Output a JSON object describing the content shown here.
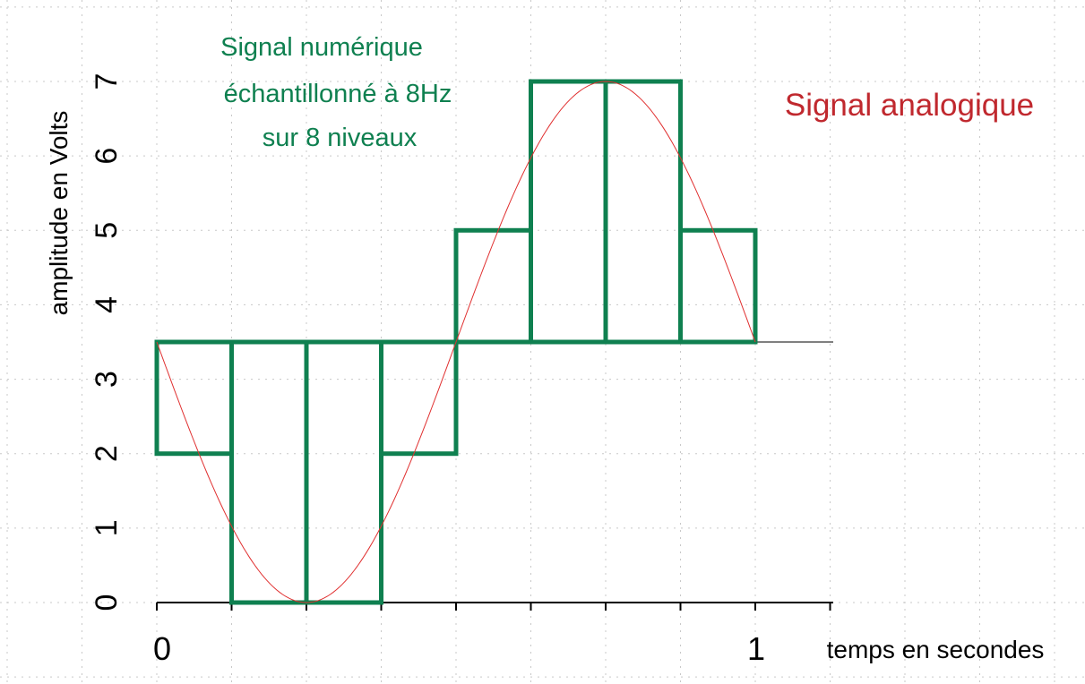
{
  "chart_data": {
    "type": "line",
    "title_lines": [
      "Signal numérique",
      "échantillonné à 8Hz",
      "sur 8 niveaux"
    ],
    "analog_label": "Signal analogique",
    "ylabel": "amplitude en Volts",
    "xlabel": "temps en secondes",
    "ylim": [
      0,
      7
    ],
    "xlim": [
      0,
      1
    ],
    "y_ticks": [
      "0",
      "1",
      "2",
      "3",
      "4",
      "5",
      "6",
      "7"
    ],
    "x_ticks": [
      "0",
      "1"
    ],
    "baseline": 3.5,
    "colors": {
      "digital": "#0f8050",
      "analog": "#e03030",
      "analog_label": "#c0282e"
    },
    "series": [
      {
        "name": "Signal numérique",
        "kind": "sample-bars",
        "x_start": [
          0,
          0.125,
          0.25,
          0.375,
          0.5,
          0.625,
          0.75,
          0.875
        ],
        "x_end": [
          0.125,
          0.25,
          0.375,
          0.5,
          0.625,
          0.75,
          0.875,
          1.0
        ],
        "values": [
          2,
          0,
          0,
          2,
          5,
          7,
          7,
          5
        ]
      },
      {
        "name": "Signal analogique",
        "kind": "sine",
        "offset": 3.5,
        "amplitude": 3.5,
        "frequency": 1,
        "phase": 180
      }
    ]
  }
}
